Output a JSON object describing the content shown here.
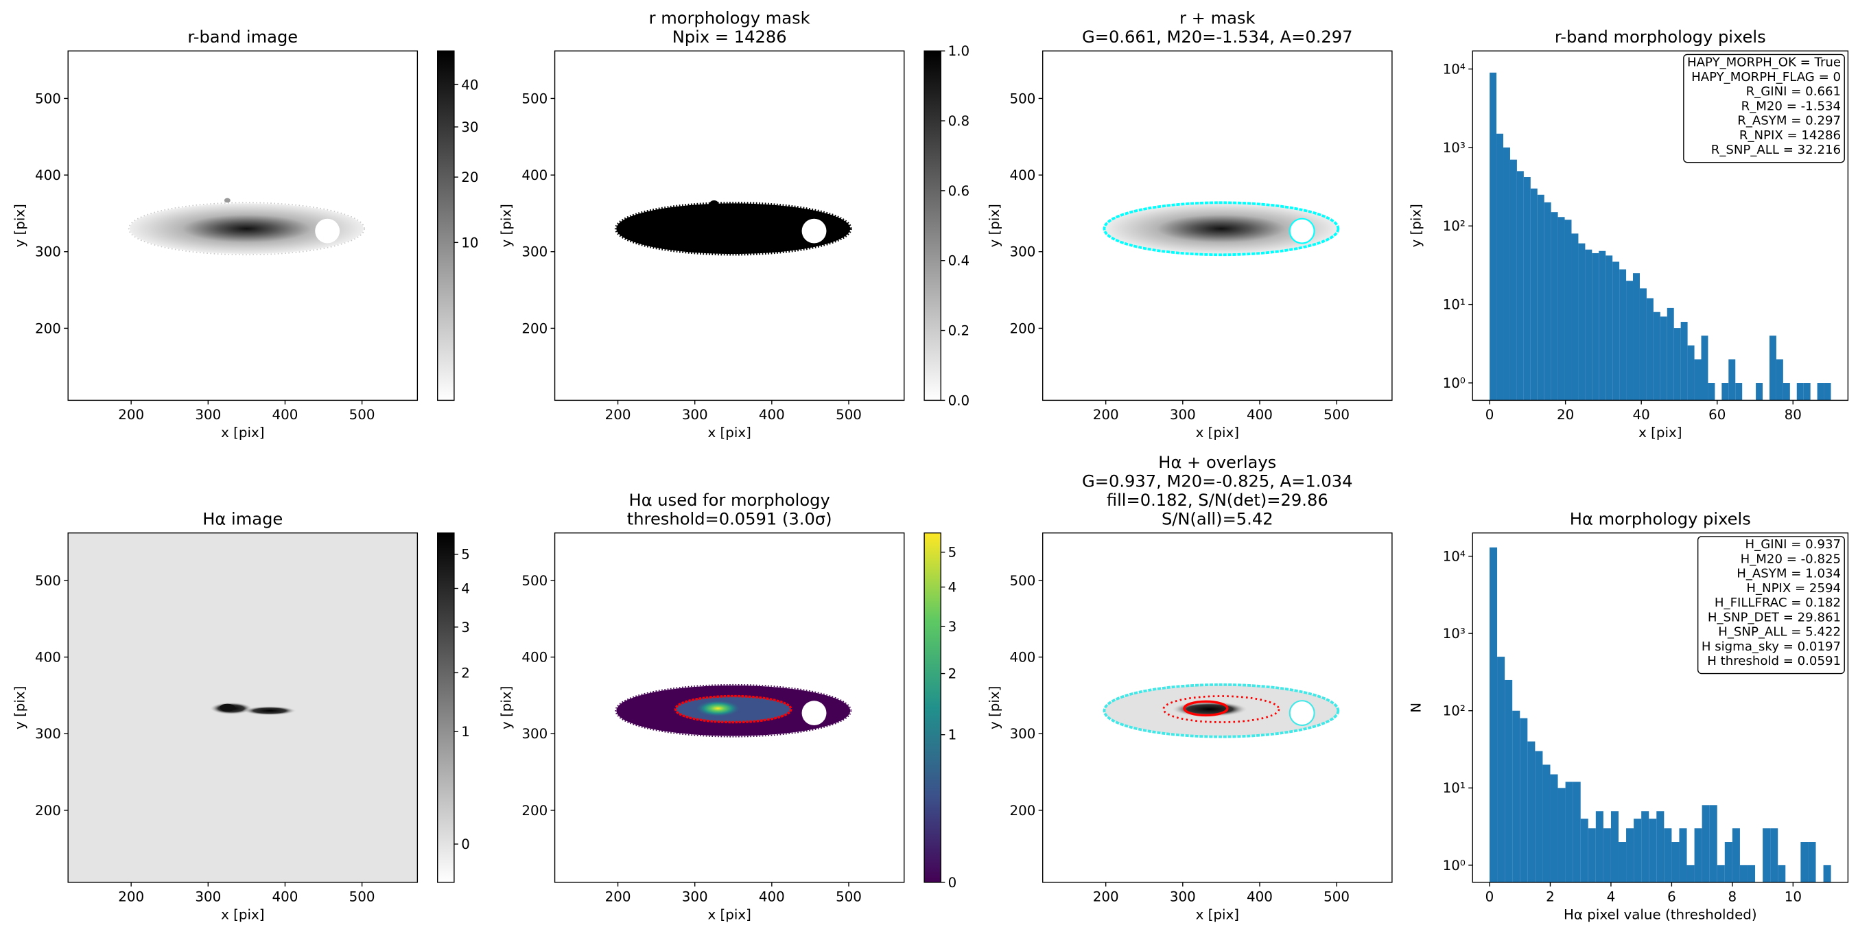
{
  "chart_data": [
    {
      "type": "image",
      "title": [
        "r-band image"
      ],
      "xlabel": "x [pix]",
      "ylabel": "y [pix]",
      "xlim": [
        118,
        572
      ],
      "ylim": [
        106,
        562
      ],
      "xticks": [
        200,
        300,
        400,
        500
      ],
      "yticks": [
        200,
        300,
        400,
        500
      ],
      "colorbar": {
        "lim": [
          0,
          49
        ],
        "scale": "sqrt",
        "cmap": "gray_r",
        "ticks": [
          10,
          20,
          30,
          40
        ]
      }
    },
    {
      "type": "image",
      "title": [
        "r morphology mask",
        "Npix = 14286"
      ],
      "xlabel": "x [pix]",
      "ylabel": "y [pix]",
      "xlim": [
        118,
        572
      ],
      "ylim": [
        106,
        562
      ],
      "xticks": [
        200,
        300,
        400,
        500
      ],
      "yticks": [
        200,
        300,
        400,
        500
      ],
      "colorbar": {
        "lim": [
          0,
          1
        ],
        "scale": "linear",
        "cmap": "gray_r",
        "ticks": [
          {
            "value": 0,
            "label": "0.0"
          },
          0.2,
          0.4,
          0.6,
          0.8,
          {
            "value": 1,
            "label": "1.0"
          }
        ]
      }
    },
    {
      "type": "image",
      "title": [
        "r + mask",
        "G=0.661, M20=-1.534, A=0.297"
      ],
      "xlabel": "x [pix]",
      "ylabel": "y [pix]",
      "xlim": [
        118,
        572
      ],
      "ylim": [
        106,
        562
      ],
      "xticks": [
        200,
        300,
        400,
        500
      ],
      "yticks": [
        200,
        300,
        400,
        500
      ]
    },
    {
      "type": "histogram",
      "title": [
        "r-band morphology pixels"
      ],
      "xlabel": "x [pix]",
      "ylabel": "y [pix]",
      "xlim": [
        -4.5,
        94.5
      ],
      "ylim": [
        0.6,
        17000
      ],
      "log_y": true,
      "color": "#1f77b4",
      "xticks": [
        0,
        20,
        40,
        60,
        80
      ],
      "yticks": [
        {
          "value": 1,
          "label": "10⁰"
        },
        {
          "value": 10,
          "label": "10¹"
        },
        {
          "value": 100,
          "label": "10²"
        },
        {
          "value": 1000,
          "label": "10³"
        },
        {
          "value": 10000,
          "label": "10⁴"
        }
      ],
      "bins": [
        0,
        1.8,
        3.6,
        5.4,
        7.2,
        9,
        10.8,
        12.6,
        14.4,
        16.2,
        18,
        19.8,
        21.6,
        23.4,
        25.2,
        27,
        28.8,
        30.6,
        32.4,
        34.2,
        36,
        37.8,
        39.6,
        41.4,
        43.2,
        45,
        46.8,
        48.6,
        50.4,
        52.2,
        54,
        55.8,
        57.6,
        59.4,
        61.2,
        63,
        64.8,
        66.6,
        68.4,
        70.2,
        72,
        73.8,
        75.6,
        77.4,
        79.2,
        81,
        82.8,
        84.6,
        86.4,
        88.2,
        90
      ],
      "counts": [
        9000,
        1500,
        1000,
        700,
        500,
        420,
        300,
        250,
        200,
        150,
        130,
        120,
        80,
        60,
        50,
        45,
        48,
        42,
        35,
        28,
        20,
        25,
        16,
        12,
        8,
        7,
        9,
        5,
        6,
        3,
        2,
        4,
        1,
        0,
        1,
        2,
        1,
        0,
        0,
        1,
        0,
        4,
        2,
        1,
        0,
        1,
        1,
        0,
        1,
        1
      ],
      "annotation": [
        "HAPY_MORPH_OK = True",
        "HAPY_MORPH_FLAG = 0",
        "R_GINI = 0.661",
        "R_M20 = -1.534",
        "R_ASYM = 0.297",
        "R_NPIX = 14286",
        "R_SNP_ALL = 32.216"
      ]
    },
    {
      "type": "image",
      "title": [
        "Hα image"
      ],
      "xlabel": "x [pix]",
      "ylabel": "y [pix]",
      "xlim": [
        118,
        572
      ],
      "ylim": [
        106,
        562
      ],
      "xticks": [
        200,
        300,
        400,
        500
      ],
      "yticks": [
        200,
        300,
        400,
        500
      ],
      "colorbar": {
        "lim": [
          -0.069,
          5.68
        ],
        "scale": "sqrt",
        "cmap": "gray_r",
        "ticks": [
          0,
          1,
          2,
          3,
          4,
          5
        ]
      }
    },
    {
      "type": "image",
      "title": [
        "Hα used for morphology",
        "threshold=0.0591 (3.0σ)"
      ],
      "xlabel": "x [pix]",
      "ylabel": "y [pix]",
      "xlim": [
        118,
        572
      ],
      "ylim": [
        106,
        562
      ],
      "xticks": [
        200,
        300,
        400,
        500
      ],
      "yticks": [
        200,
        300,
        400,
        500
      ],
      "colorbar": {
        "lim": [
          0,
          5.6
        ],
        "scale": "sqrt",
        "cmap": "viridis",
        "ticks": [
          0,
          1,
          2,
          3,
          4,
          5
        ]
      }
    },
    {
      "type": "image",
      "title": [
        "Hα + overlays",
        "G=0.937, M20=-0.825, A=1.034",
        "fill=0.182, S/N(det)=29.86",
        "S/N(all)=5.42"
      ],
      "xlabel": "x [pix]",
      "ylabel": "y [pix]",
      "xlim": [
        118,
        572
      ],
      "ylim": [
        106,
        562
      ],
      "xticks": [
        200,
        300,
        400,
        500
      ],
      "yticks": [
        200,
        300,
        400,
        500
      ]
    },
    {
      "type": "histogram",
      "title": [
        "Hα morphology pixels"
      ],
      "xlabel": "Hα pixel value (thresholded)",
      "ylabel": "N",
      "xlim": [
        -0.56,
        11.81
      ],
      "ylim": [
        0.6,
        20000
      ],
      "log_y": true,
      "color": "#1f77b4",
      "xticks": [
        0,
        2,
        4,
        6,
        8,
        10
      ],
      "yticks": [
        {
          "value": 1,
          "label": "10⁰"
        },
        {
          "value": 10,
          "label": "10¹"
        },
        {
          "value": 100,
          "label": "10²"
        },
        {
          "value": 1000,
          "label": "10³"
        },
        {
          "value": 10000,
          "label": "10⁴"
        }
      ],
      "bins": [
        0,
        0.25,
        0.5,
        0.75,
        1,
        1.25,
        1.5,
        1.75,
        2,
        2.25,
        2.5,
        2.75,
        3,
        3.25,
        3.5,
        3.75,
        4,
        4.25,
        4.5,
        4.75,
        5,
        5.25,
        5.5,
        5.75,
        6,
        6.25,
        6.5,
        6.75,
        7,
        7.25,
        7.5,
        7.75,
        8,
        8.25,
        8.5,
        8.75,
        9,
        9.25,
        9.5,
        9.75,
        10,
        10.25,
        10.5,
        10.75,
        11,
        11.25
      ],
      "counts": [
        13000,
        500,
        250,
        100,
        80,
        40,
        30,
        20,
        15,
        10,
        12,
        12,
        4,
        3,
        5,
        3,
        5,
        2,
        3,
        4,
        5,
        4,
        5,
        3,
        2,
        3,
        1,
        3,
        6,
        6,
        1,
        2,
        3,
        1,
        1,
        0,
        3,
        3,
        1,
        0,
        0,
        2,
        2,
        0,
        1
      ],
      "annotation": [
        "H_GINI = 0.937",
        "H_M20 = -0.825",
        "H_ASYM = 1.034",
        "H_NPIX = 2594",
        "H_FILLFRAC = 0.182",
        "H_SNP_DET = 29.861",
        "H_SNP_ALL = 5.422",
        "H sigma_sky = 0.0197",
        "H threshold = 0.0591"
      ]
    }
  ]
}
